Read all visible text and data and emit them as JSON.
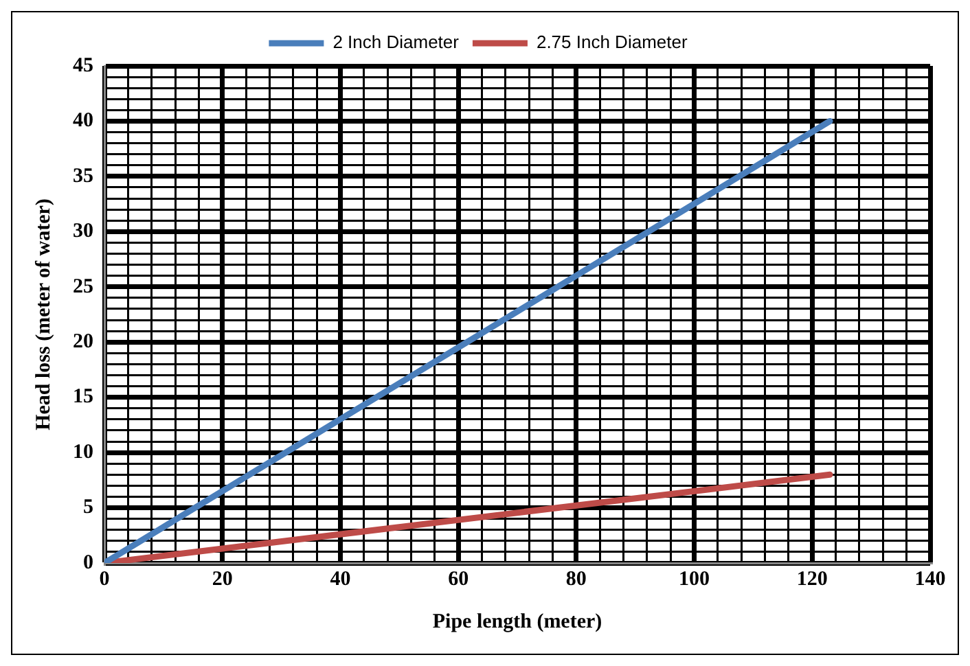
{
  "chart_data": {
    "type": "line",
    "xlabel": "Pipe length (meter)",
    "ylabel": "Head loss (meter of water)",
    "x": [
      0,
      123
    ],
    "series": [
      {
        "name": "2 Inch Diameter",
        "color": "#4a7ebb",
        "values": [
          0,
          40
        ]
      },
      {
        "name": "2.75 Inch Diameter",
        "color": "#be4b48",
        "values": [
          0,
          8
        ]
      }
    ],
    "xlim": [
      0,
      140
    ],
    "ylim": [
      0,
      45
    ],
    "xticks": [
      0,
      {
        "value": 4,
        "label": null
      },
      {
        "value": 8,
        "label": null
      },
      {
        "value": 12,
        "label": null
      },
      {
        "value": 16,
        "label": null
      },
      20,
      {
        "value": 24,
        "label": null
      },
      {
        "value": 28,
        "label": null
      },
      {
        "value": 32,
        "label": null
      },
      {
        "value": 36,
        "label": null
      },
      40,
      {
        "value": 44,
        "label": null
      },
      {
        "value": 48,
        "label": null
      },
      {
        "value": 52,
        "label": null
      },
      {
        "value": 56,
        "label": null
      },
      60,
      {
        "value": 64,
        "label": null
      },
      {
        "value": 68,
        "label": null
      },
      {
        "value": 72,
        "label": null
      },
      {
        "value": 76,
        "label": null
      },
      80,
      {
        "value": 84,
        "label": null
      },
      {
        "value": 88,
        "label": null
      },
      {
        "value": 92,
        "label": null
      },
      {
        "value": 96,
        "label": null
      },
      100,
      {
        "value": 104,
        "label": null
      },
      {
        "value": 108,
        "label": null
      },
      {
        "value": 112,
        "label": null
      },
      {
        "value": 116,
        "label": null
      },
      120,
      {
        "value": 124,
        "label": null
      },
      {
        "value": 128,
        "label": null
      },
      {
        "value": 132,
        "label": null
      },
      {
        "value": 136,
        "label": null
      },
      140
    ],
    "yticks": [
      0,
      {
        "value": 1,
        "label": null
      },
      {
        "value": 2,
        "label": null
      },
      {
        "value": 3,
        "label": null
      },
      {
        "value": 4,
        "label": null
      },
      5,
      {
        "value": 6,
        "label": null
      },
      {
        "value": 7,
        "label": null
      },
      {
        "value": 8,
        "label": null
      },
      {
        "value": 9,
        "label": null
      },
      10,
      {
        "value": 11,
        "label": null
      },
      {
        "value": 12,
        "label": null
      },
      {
        "value": 13,
        "label": null
      },
      {
        "value": 14,
        "label": null
      },
      15,
      {
        "value": 16,
        "label": null
      },
      {
        "value": 17,
        "label": null
      },
      {
        "value": 18,
        "label": null
      },
      {
        "value": 19,
        "label": null
      },
      20,
      {
        "value": 21,
        "label": null
      },
      {
        "value": 22,
        "label": null
      },
      {
        "value": 23,
        "label": null
      },
      {
        "value": 24,
        "label": null
      },
      25,
      {
        "value": 26,
        "label": null
      },
      {
        "value": 27,
        "label": null
      },
      {
        "value": 28,
        "label": null
      },
      {
        "value": 29,
        "label": null
      },
      30,
      {
        "value": 31,
        "label": null
      },
      {
        "value": 32,
        "label": null
      },
      {
        "value": 33,
        "label": null
      },
      {
        "value": 34,
        "label": null
      },
      35,
      {
        "value": 36,
        "label": null
      },
      {
        "value": 37,
        "label": null
      },
      {
        "value": 38,
        "label": null
      },
      {
        "value": 39,
        "label": null
      },
      40,
      {
        "value": 41,
        "label": null
      },
      {
        "value": 42,
        "label": null
      },
      {
        "value": 43,
        "label": null
      },
      {
        "value": 44,
        "label": null
      },
      45
    ],
    "grid": true,
    "legend": "top",
    "marker": "none",
    "line_style": "solid"
  }
}
